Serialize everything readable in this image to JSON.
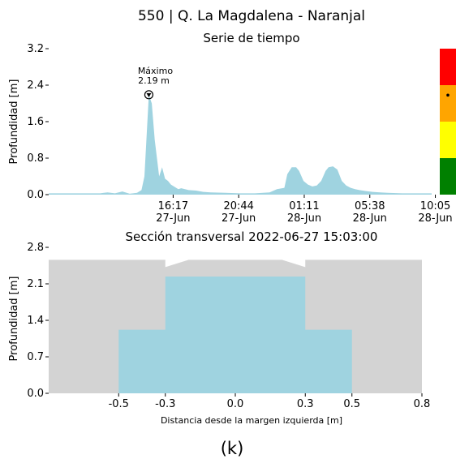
{
  "figure": {
    "title": "550 | Q. La Magdalena - Naranjal",
    "panel_label": "(k)"
  },
  "chart_data": [
    {
      "type": "area",
      "title": "Serie de tiempo",
      "xlabel": "",
      "ylabel": "Profundidad [m]",
      "ylim": [
        0,
        3.2
      ],
      "y_ticks": [
        "0.0",
        "0.8",
        "1.6",
        "2.4",
        "3.2"
      ],
      "x_tick_labels": [
        {
          "time": "16:17",
          "date": "27-Jun"
        },
        {
          "time": "20:44",
          "date": "27-Jun"
        },
        {
          "time": "01:11",
          "date": "28-Jun"
        },
        {
          "time": "05:38",
          "date": "28-Jun"
        },
        {
          "time": "10:05",
          "date": "28-Jun"
        }
      ],
      "x_range_hours": [
        -4.0,
        22.0
      ],
      "x_tick_hours": [
        4.45,
        8.9,
        13.35,
        17.8,
        22.25
      ],
      "series_color": "#9fd3e0",
      "x_hours": [
        -4.0,
        -0.5,
        0.0,
        0.5,
        1.0,
        1.5,
        2.0,
        2.3,
        2.5,
        2.8,
        3.0,
        3.2,
        3.5,
        3.7,
        3.9,
        4.1,
        4.3,
        4.5,
        4.8,
        5.0,
        5.5,
        6.0,
        6.5,
        7.0,
        8.0,
        9.0,
        10.0,
        11.0,
        11.5,
        12.0,
        12.2,
        12.5,
        12.8,
        13.0,
        13.3,
        13.6,
        13.9,
        14.2,
        14.5,
        14.8,
        15.0,
        15.3,
        15.6,
        15.9,
        16.2,
        16.5,
        16.8,
        17.1,
        17.5,
        18.0,
        18.5,
        19.0,
        20.0,
        21.0,
        22.0
      ],
      "depth_m": [
        0.03,
        0.03,
        0.05,
        0.03,
        0.07,
        0.02,
        0.04,
        0.1,
        0.4,
        2.19,
        2.0,
        1.2,
        0.4,
        0.6,
        0.35,
        0.3,
        0.22,
        0.18,
        0.12,
        0.14,
        0.1,
        0.09,
        0.06,
        0.05,
        0.04,
        0.03,
        0.03,
        0.05,
        0.12,
        0.15,
        0.45,
        0.6,
        0.6,
        0.52,
        0.3,
        0.22,
        0.18,
        0.2,
        0.3,
        0.52,
        0.6,
        0.62,
        0.55,
        0.3,
        0.2,
        0.15,
        0.12,
        0.1,
        0.08,
        0.06,
        0.05,
        0.04,
        0.03,
        0.03,
        0.03
      ],
      "annotation": {
        "text_line1": "Máximo",
        "text_line2": "2.19 m",
        "x_hour": 2.8,
        "value": 2.19
      },
      "alert_scale": {
        "colors": [
          "#008000",
          "#ffff00",
          "#ffa500",
          "#ff0000"
        ],
        "bounds_m": [
          0,
          0.8,
          1.6,
          2.4,
          3.2
        ],
        "marker_value": 2.19
      }
    },
    {
      "type": "area",
      "title": "Sección transversal 2022-06-27 15:03:00",
      "xlabel": "Distancia desde la margen izquierda [m]",
      "ylabel": "Profundidad [m]",
      "xlim": [
        -0.8,
        0.8
      ],
      "ylim": [
        0,
        2.8
      ],
      "x_ticks": [
        -0.5,
        -0.3,
        0.0,
        0.3,
        0.5,
        0.8
      ],
      "x_tick_labels": [
        "-0.5",
        "-0.3",
        "0.0",
        "0.3",
        "0.5",
        "0.8"
      ],
      "y_ticks": [
        "0.0",
        "0.7",
        "1.4",
        "2.1",
        "2.8"
      ],
      "terrain_color": "#d3d3d3",
      "water_color": "#9fd3e0",
      "water_level_m": 2.24,
      "channel_profile": {
        "x": [
          -0.8,
          -0.5,
          -0.5,
          -0.3,
          -0.3,
          0.3,
          0.3,
          0.5,
          0.5,
          0.8
        ],
        "bed": [
          2.56,
          2.56,
          1.22,
          1.22,
          0.0,
          0.0,
          1.22,
          1.22,
          2.56,
          2.56
        ]
      },
      "bank_notch": {
        "x": [
          -0.3,
          -0.2,
          0.2,
          0.3
        ],
        "top": [
          2.42,
          2.56,
          2.56,
          2.42
        ]
      }
    }
  ]
}
